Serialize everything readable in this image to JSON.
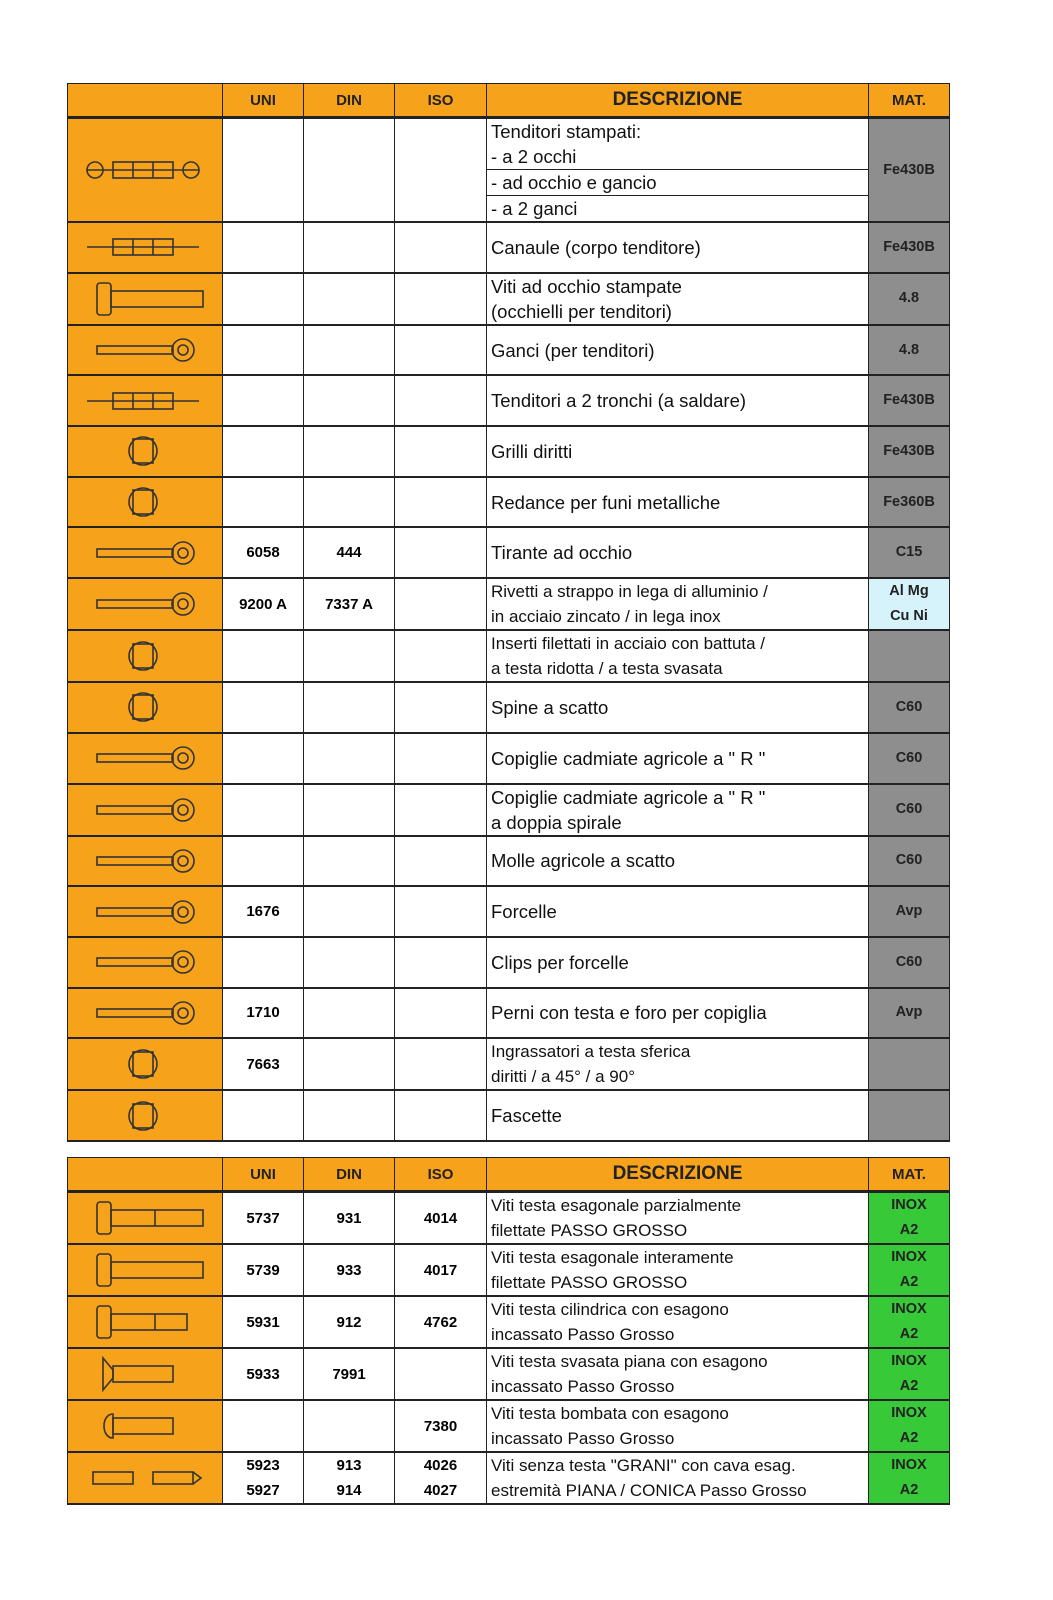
{
  "headers": {
    "icon": "",
    "uni": "UNI",
    "din": "DIN",
    "iso": "ISO",
    "desc": "DESCRIZIONE",
    "mat": "MAT."
  },
  "colors": {
    "header": "#f7a21b",
    "mat_gray": "#8e8e8e",
    "mat_blue": "#d6f2fb",
    "mat_green": "#38c938"
  },
  "table1": [
    {
      "icon": "turnbuckle-icon",
      "uni": "",
      "din": "",
      "iso": "",
      "desc": [
        "Tenditori stampati:",
        "- a 2 occhi",
        "- ad occhio e gancio",
        "- a 2 ganci"
      ],
      "mat": [
        "Fe430B"
      ],
      "mat_color": "gray"
    },
    {
      "icon": "turnbuckle-body-icon",
      "uni": "",
      "din": "",
      "iso": "",
      "desc": [
        "Canaule  (corpo tenditore)"
      ],
      "mat": [
        "Fe430B"
      ],
      "mat_color": "gray"
    },
    {
      "icon": "eye-bolt-icon",
      "uni": "",
      "din": "",
      "iso": "",
      "desc": [
        "Viti ad occhio stampate",
        "(occhielli per tenditori)"
      ],
      "mat": [
        "4.8"
      ],
      "mat_color": "gray"
    },
    {
      "icon": "hook-icon",
      "uni": "",
      "din": "",
      "iso": "",
      "desc": [
        "Ganci (per tenditori)"
      ],
      "mat": [
        "4.8"
      ],
      "mat_color": "gray"
    },
    {
      "icon": "weld-turnbuckle-icon",
      "uni": "",
      "din": "",
      "iso": "",
      "desc": [
        "Tenditori a 2 tronchi  (a saldare)"
      ],
      "mat": [
        "Fe430B"
      ],
      "mat_color": "gray"
    },
    {
      "icon": "shackle-icon",
      "uni": "",
      "din": "",
      "iso": "",
      "desc": [
        "Grilli diritti"
      ],
      "mat": [
        "Fe430B"
      ],
      "mat_color": "gray"
    },
    {
      "icon": "thimble-icon",
      "uni": "",
      "din": "",
      "iso": "",
      "desc": [
        "Redance per funi metalliche"
      ],
      "mat": [
        "Fe360B"
      ],
      "mat_color": "gray"
    },
    {
      "icon": "eye-rod-icon",
      "uni": "6058",
      "din": "444",
      "iso": "",
      "desc": [
        "Tirante ad occhio"
      ],
      "mat": [
        "C15"
      ],
      "mat_color": "gray"
    },
    {
      "icon": "rivet-icon",
      "uni": "9200 A",
      "din": "7337 A",
      "iso": "",
      "desc": [
        "Rivetti a strappo in lega di alluminio  /",
        "in acciaio zincato  /  in lega inox"
      ],
      "mat": [
        "Al Mg",
        "Cu Ni"
      ],
      "mat_color": "blue",
      "small": true
    },
    {
      "icon": "insert-icon",
      "uni": "",
      "din": "",
      "iso": "",
      "desc": [
        "Inserti filettati in acciaio con battuta  /",
        "a testa ridotta  /  a testa svasata"
      ],
      "mat": [
        ""
      ],
      "mat_color": "gray",
      "small": true
    },
    {
      "icon": "snap-pin-icon",
      "uni": "",
      "din": "",
      "iso": "",
      "desc": [
        "Spine a scatto"
      ],
      "mat": [
        "C60"
      ],
      "mat_color": "gray"
    },
    {
      "icon": "r-clip-icon",
      "uni": "",
      "din": "",
      "iso": "",
      "desc": [
        "Copiglie cadmiate agricole a \" R \""
      ],
      "mat": [
        "C60"
      ],
      "mat_color": "gray"
    },
    {
      "icon": "r-clip-double-icon",
      "uni": "",
      "din": "",
      "iso": "",
      "desc": [
        "Copiglie cadmiate agricole a \" R \"",
        "a doppia spirale"
      ],
      "mat": [
        "C60"
      ],
      "mat_color": "gray"
    },
    {
      "icon": "spring-pin-icon",
      "uni": "",
      "din": "",
      "iso": "",
      "desc": [
        "Molle agricole a scatto"
      ],
      "mat": [
        "C60"
      ],
      "mat_color": "gray"
    },
    {
      "icon": "clevis-icon",
      "uni": "1676",
      "din": "",
      "iso": "",
      "desc": [
        "Forcelle"
      ],
      "mat": [
        "Avp"
      ],
      "mat_color": "gray"
    },
    {
      "icon": "clevis-clip-icon",
      "uni": "",
      "din": "",
      "iso": "",
      "desc": [
        "Clips per forcelle"
      ],
      "mat": [
        "C60"
      ],
      "mat_color": "gray"
    },
    {
      "icon": "clevis-pin-icon",
      "uni": "1710",
      "din": "",
      "iso": "",
      "desc": [
        "Perni con testa e foro per copiglia"
      ],
      "mat": [
        "Avp"
      ],
      "mat_color": "gray"
    },
    {
      "icon": "grease-nipple-icon",
      "uni": "7663",
      "din": "",
      "iso": "",
      "desc": [
        "Ingrassatori a testa sferica",
        "diritti  /  a 45°  /  a 90°"
      ],
      "mat": [
        ""
      ],
      "mat_color": "gray",
      "small": true
    },
    {
      "icon": "hose-clamp-icon",
      "uni": "",
      "din": "",
      "iso": "",
      "desc": [
        "Fascette"
      ],
      "mat": [
        ""
      ],
      "mat_color": "gray"
    }
  ],
  "table2": [
    {
      "icon": "hex-bolt-partial-icon",
      "uni": "5737",
      "din": "931",
      "iso": "4014",
      "desc": [
        "Viti testa esagonale parzialmente",
        "filettate PASSO GROSSO"
      ],
      "mat": [
        "INOX",
        "A2"
      ],
      "mat_color": "green",
      "small": true
    },
    {
      "icon": "hex-bolt-full-icon",
      "uni": "5739",
      "din": "933",
      "iso": "4017",
      "desc": [
        "Viti testa esagonale interamente",
        "filettate PASSO GROSSO"
      ],
      "mat": [
        "INOX",
        "A2"
      ],
      "mat_color": "green",
      "small": true
    },
    {
      "icon": "socket-cap-screw-icon",
      "uni": "5931",
      "din": "912",
      "iso": "4762",
      "desc": [
        "Viti testa cilindrica con esagono",
        "incassato Passo Grosso"
      ],
      "mat": [
        "INOX",
        "A2"
      ],
      "mat_color": "green",
      "small": true
    },
    {
      "icon": "countersunk-screw-icon",
      "uni": "5933",
      "din": "7991",
      "iso": "",
      "desc": [
        "Viti testa svasata piana con esagono",
        "incassato Passo Grosso"
      ],
      "mat": [
        "INOX",
        "A2"
      ],
      "mat_color": "green",
      "small": true
    },
    {
      "icon": "button-head-screw-icon",
      "uni": "",
      "din": "",
      "iso": "7380",
      "desc": [
        "Viti testa bombata con esagono",
        "incassato Passo Grosso"
      ],
      "mat": [
        "INOX",
        "A2"
      ],
      "mat_color": "green",
      "small": true
    },
    {
      "icon": "set-screw-icon",
      "uni": "5923\n5927",
      "din": "913\n914",
      "iso": "4026\n4027",
      "desc": [
        "Viti senza testa \"GRANI\" con cava esag.",
        "estremità PIANA / CONICA Passo Grosso"
      ],
      "mat": [
        "INOX",
        "A2"
      ],
      "mat_color": "green",
      "small": true
    }
  ]
}
